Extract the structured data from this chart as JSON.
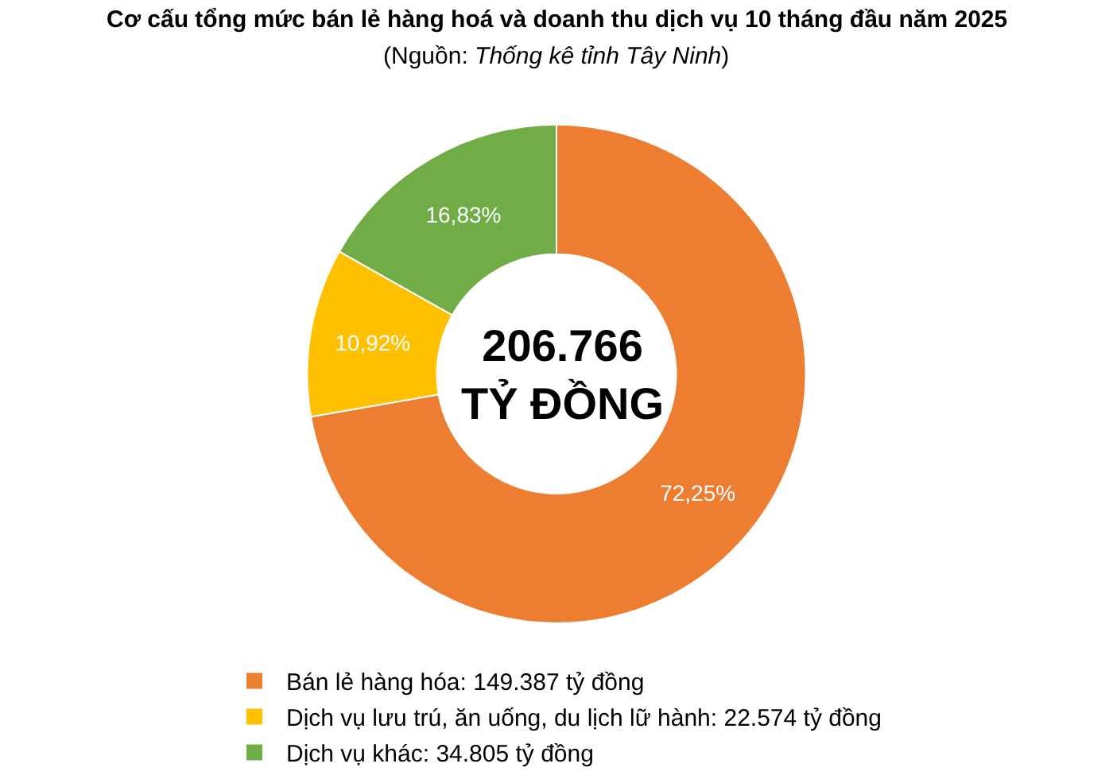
{
  "chart_data": {
    "type": "donut",
    "title": "Cơ cấu tổng mức bán lẻ hàng hoá và doanh thu dịch vụ 10 tháng đầu năm 2025",
    "subtitle": "(Nguồn: Thống kê tỉnh Tây Ninh)",
    "categories": [
      "Bán lẻ hàng hóa: 149.387 tỷ đồng",
      "Dịch vụ lưu trú, ăn uống, du lịch lữ hành: 22.574 tỷ đồng",
      "Dịch vụ khác: 34.805 tỷ đồng"
    ],
    "values": [
      72.25,
      10.92,
      16.83
    ],
    "value_labels": [
      "72,25%",
      "10,92%",
      "16,83%"
    ],
    "colors": [
      "#ed7d31",
      "#ffc000",
      "#70ad47"
    ],
    "annotations": [
      "206.766\nTỶ ĐỒNG"
    ],
    "legend": "bottom"
  }
}
